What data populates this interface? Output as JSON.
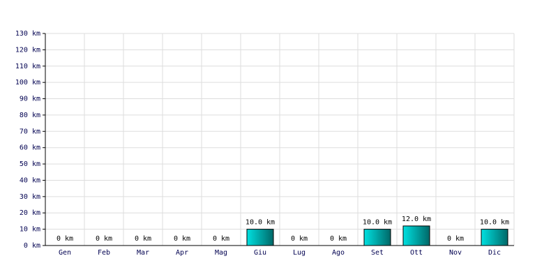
{
  "chart_data": {
    "type": "bar",
    "categories": [
      "Gen",
      "Feb",
      "Mar",
      "Apr",
      "Mag",
      "Giu",
      "Lug",
      "Ago",
      "Set",
      "Ott",
      "Nov",
      "Dic"
    ],
    "values": [
      0,
      0,
      0,
      0,
      0,
      10,
      0,
      0,
      10,
      12,
      0,
      10
    ],
    "value_labels": [
      "0 km",
      "0 km",
      "0 km",
      "0 km",
      "0 km",
      "10.0 km",
      "0 km",
      "0 km",
      "10.0 km",
      "12.0 km",
      "0 km",
      "10.0 km"
    ],
    "color": "#00e0e0",
    "ylim": [
      0,
      130
    ],
    "yticks": [
      {
        "value": 0,
        "label": "0 km"
      },
      {
        "value": 10,
        "label": "10 km"
      },
      {
        "value": 20,
        "label": "20 km"
      },
      {
        "value": 30,
        "label": "30 km"
      },
      {
        "value": 40,
        "label": "40 km"
      },
      {
        "value": 50,
        "label": "50 km"
      },
      {
        "value": 60,
        "label": "60 km"
      },
      {
        "value": 70,
        "label": "70 km"
      },
      {
        "value": 80,
        "label": "80 km"
      },
      {
        "value": 90,
        "label": "90 km"
      },
      {
        "value": 100,
        "label": "100 km"
      },
      {
        "value": 110,
        "label": "110 km"
      },
      {
        "value": 120,
        "label": "120 km"
      },
      {
        "value": 130,
        "label": "130 km"
      }
    ],
    "grid": true
  }
}
